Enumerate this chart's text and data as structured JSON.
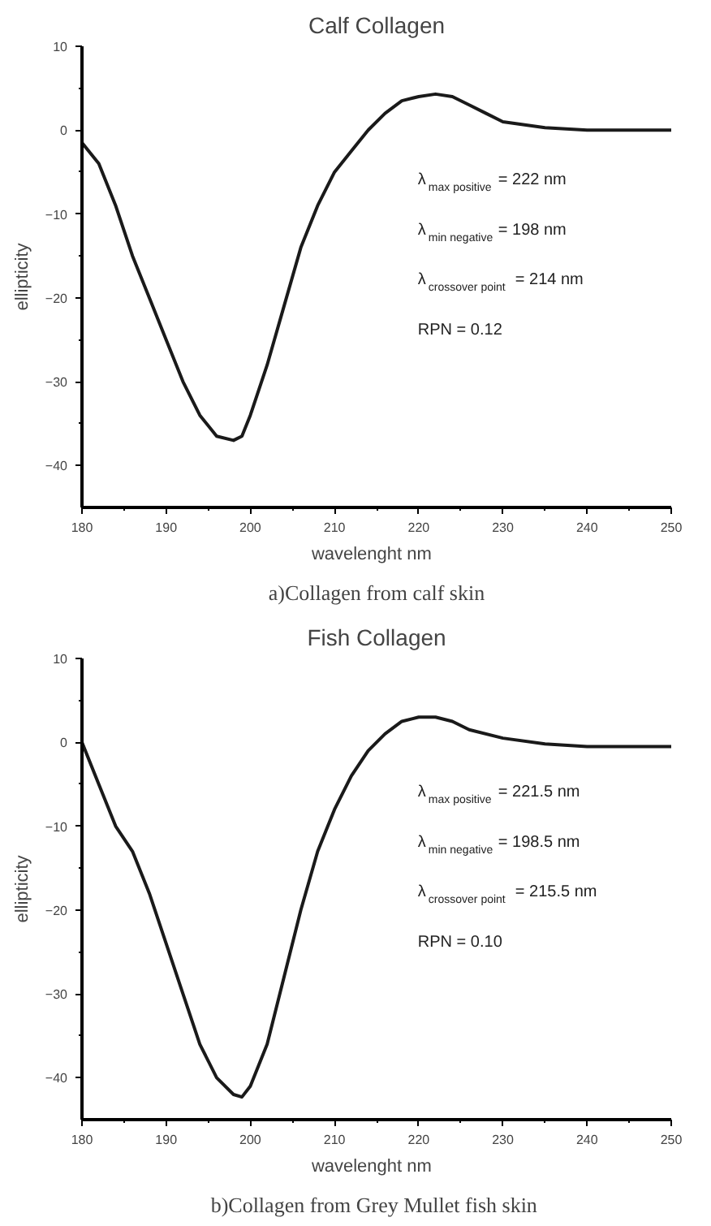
{
  "chart_data": [
    {
      "type": "line",
      "title": "Calf Collagen",
      "xlabel": "wavelenght   nm",
      "ylabel": "ellipticity",
      "x": [
        180,
        182,
        184,
        186,
        188,
        190,
        192,
        194,
        196,
        198,
        199,
        200,
        202,
        204,
        206,
        208,
        210,
        212,
        214,
        216,
        218,
        220,
        222,
        224,
        226,
        228,
        230,
        235,
        240,
        250
      ],
      "series": [
        {
          "color": "#1a1a1a",
          "values": [
            -1.5,
            -4,
            -9,
            -15,
            -20,
            -25,
            -30,
            -34,
            -36.5,
            -37,
            -36.5,
            -34,
            -28,
            -21,
            -14,
            -9,
            -5,
            -2.5,
            0,
            2,
            3.5,
            4,
            4.3,
            4,
            3,
            2,
            1,
            0.3,
            0,
            0
          ]
        }
      ],
      "xlim": [
        180,
        250
      ],
      "xticks": [
        180,
        190,
        200,
        210,
        220,
        230,
        240,
        250
      ],
      "ylim": [
        -45,
        10
      ],
      "yticks": [
        -40,
        -30,
        -20,
        -10,
        0,
        10
      ],
      "line_style": "solid",
      "annotations": [
        "λ$_{max positive}$ = 222 nm",
        "λ$_{min negative}$ = 198 nm",
        "λ$_{crossover point}$ = 214 nm",
        "RPN = 0.12",
        "a)Collagen from calf skin"
      ]
    },
    {
      "type": "line",
      "title": "Fish Collagen",
      "xlabel": "wavelenght   nm",
      "ylabel": "ellipticity",
      "x": [
        180,
        182,
        184,
        186,
        188,
        190,
        192,
        194,
        196,
        198,
        199,
        200,
        202,
        204,
        206,
        208,
        210,
        212,
        214,
        216,
        218,
        220,
        222,
        224,
        226,
        230,
        235,
        240,
        250
      ],
      "series": [
        {
          "color": "#1a1a1a",
          "values": [
            0,
            -5,
            -10,
            -13,
            -18,
            -24,
            -30,
            -36,
            -40,
            -42,
            -42.3,
            -41,
            -36,
            -28,
            -20,
            -13,
            -8,
            -4,
            -1,
            1,
            2.5,
            3,
            3,
            2.5,
            1.5,
            0.5,
            -0.2,
            -0.5,
            -0.5
          ]
        }
      ],
      "xlim": [
        180,
        250
      ],
      "xticks": [
        180,
        190,
        200,
        210,
        220,
        230,
        240,
        250
      ],
      "ylim": [
        -45,
        10
      ],
      "yticks": [
        -40,
        -30,
        -20,
        -10,
        0,
        10
      ],
      "line_style": "solid",
      "annotations": [
        "λ$_{max positive}$ = 221.5 nm",
        "λ$_{min negative}$ = 198.5 nm",
        "λ$_{crossover point}$ = 215.5 nm",
        "RPN = 0.10",
        "b)Collagen from  Grey Mullet fish skin"
      ]
    }
  ]
}
